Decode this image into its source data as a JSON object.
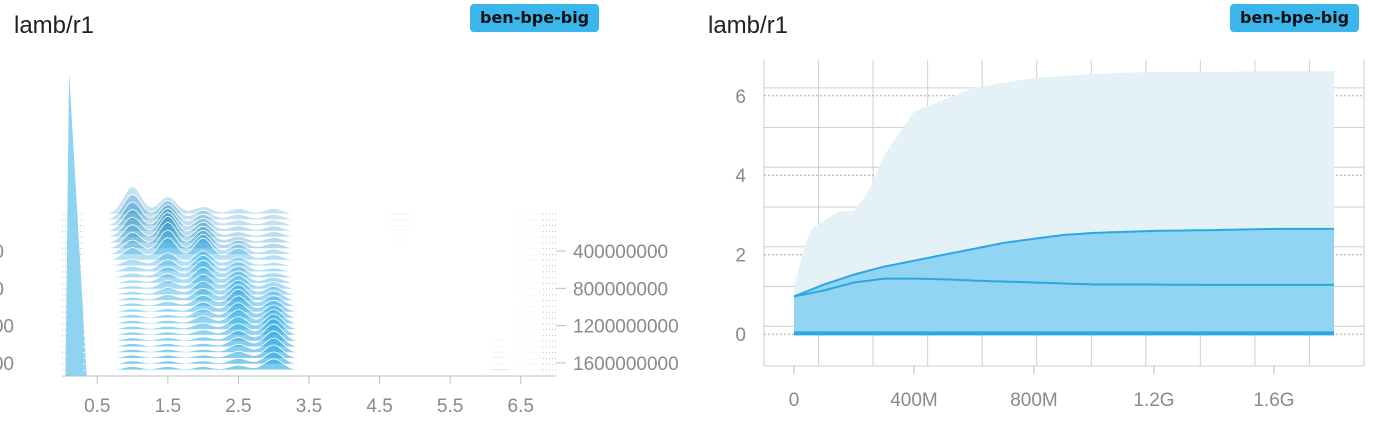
{
  "colors": {
    "accent": "#2aa8e0",
    "accent_light": "#8dd3f2",
    "accent_dark": "#1a8cc4",
    "badge_bg": "#3ab6ec",
    "outer_band": "#e4f1f6",
    "grid": "#cfcfcf",
    "tick": "#8a8a8a"
  },
  "panels": [
    {
      "title": "lamb/r1",
      "run_badge": "ben-bpe-big"
    },
    {
      "title": "lamb/r1",
      "run_badge": "ben-bpe-big"
    }
  ],
  "chart_data": [
    {
      "type": "area",
      "subtype": "histogram-offset",
      "title": "lamb/r1",
      "legend": [
        "ben-bpe-big"
      ],
      "x_ticks": [
        "0.5",
        "1.5",
        "2.5",
        "3.5",
        "4.5",
        "5.5",
        "6.5"
      ],
      "xlim": [
        0,
        7
      ],
      "step_ticks": [
        "400000000",
        "800000000",
        "1200000000",
        "1600000000"
      ],
      "step_ticks_left_partial": [
        "0",
        "0",
        "00",
        "00"
      ],
      "steps_shown": [
        0,
        400000000,
        800000000,
        1200000000,
        1600000000
      ],
      "modes": [
        {
          "x": 0.1,
          "peak_height": "very high",
          "note": "spike near zero"
        },
        {
          "x": 1.0,
          "note": "early steps"
        },
        {
          "x": 1.5
        },
        {
          "x": 2.0
        },
        {
          "x": 2.5
        },
        {
          "x": 3.0
        }
      ]
    },
    {
      "type": "area",
      "subtype": "distribution",
      "title": "lamb/r1",
      "legend": [
        "ben-bpe-big"
      ],
      "x_ticks": [
        "0",
        "400M",
        "800M",
        "1.2G",
        "1.6G"
      ],
      "xlim": [
        -100000000,
        1900000000
      ],
      "y_ticks": [
        "0",
        "2",
        "4",
        "6"
      ],
      "ylim": [
        -0.8,
        6.9
      ],
      "grid": true,
      "series": [
        {
          "name": "max",
          "x": [
            0,
            50000000,
            150000000,
            200000000,
            250000000,
            300000000,
            400000000,
            600000000,
            800000000,
            1000000000,
            1200000000,
            1400000000,
            1600000000,
            1800000000
          ],
          "values": [
            1.2,
            2.6,
            3.1,
            3.1,
            3.6,
            4.5,
            5.6,
            6.2,
            6.45,
            6.55,
            6.6,
            6.6,
            6.62,
            6.62
          ]
        },
        {
          "name": "upper",
          "x": [
            0,
            100000000,
            200000000,
            300000000,
            400000000,
            500000000,
            600000000,
            700000000,
            800000000,
            900000000,
            1000000000,
            1200000000,
            1400000000,
            1600000000,
            1800000000
          ],
          "values": [
            0.95,
            1.25,
            1.5,
            1.7,
            1.85,
            2.0,
            2.15,
            2.3,
            2.4,
            2.5,
            2.55,
            2.6,
            2.62,
            2.65,
            2.65
          ]
        },
        {
          "name": "median",
          "x": [
            0,
            100000000,
            200000000,
            300000000,
            400000000,
            500000000,
            600000000,
            800000000,
            1000000000,
            1200000000,
            1400000000,
            1600000000,
            1800000000
          ],
          "values": [
            0.95,
            1.1,
            1.3,
            1.4,
            1.4,
            1.38,
            1.35,
            1.3,
            1.25,
            1.25,
            1.24,
            1.24,
            1.24
          ]
        },
        {
          "name": "min",
          "x": [
            0,
            1800000000
          ],
          "values": [
            0.02,
            0.02
          ]
        }
      ]
    }
  ]
}
